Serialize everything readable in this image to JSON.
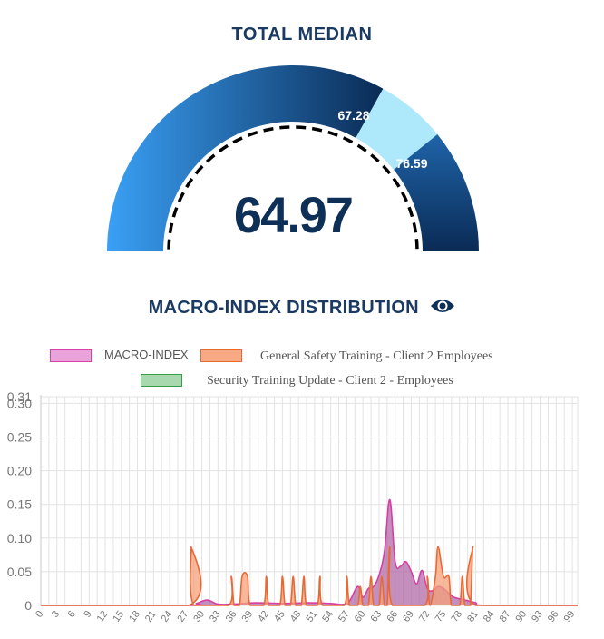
{
  "gauge": {
    "title": "TOTAL MEDIAN",
    "value": "64.97",
    "marker_a": "67.28",
    "marker_b": "76.59",
    "gradient_light": "#3aa0f5",
    "gradient_dark": "#0a2b55",
    "band_color": "#aee8fb"
  },
  "distribution": {
    "title": "MACRO-INDEX DISTRIBUTION",
    "eye_icon": "eye-icon"
  },
  "chart_data": {
    "type": "area",
    "xlim": [
      0,
      100
    ],
    "ylim": [
      0,
      0.31
    ],
    "x_ticks": [
      "0",
      "3",
      "6",
      "9",
      "12",
      "15",
      "18",
      "21",
      "24",
      "27",
      "30",
      "33",
      "36",
      "39",
      "42",
      "45",
      "48",
      "51",
      "54",
      "57",
      "60",
      "63",
      "66",
      "69",
      "72",
      "75",
      "78",
      "81",
      "84",
      "87",
      "90",
      "93",
      "96",
      "99"
    ],
    "y_ticks": [
      "0",
      "0.05",
      "0.10",
      "0.15",
      "0.20",
      "0.25",
      "0.30",
      "0.31"
    ],
    "grid": true,
    "legend_position": "top",
    "series": [
      {
        "name": "MACRO-INDEX",
        "fill": "#b06aa7",
        "stroke": "#d63fa6",
        "legend_fill": "#eaa3db",
        "points": [
          [
            0,
            0
          ],
          [
            27,
            0
          ],
          [
            29,
            0.003
          ],
          [
            31,
            0.008
          ],
          [
            33,
            0.002
          ],
          [
            36,
            0.002
          ],
          [
            40,
            0.004
          ],
          [
            45,
            0.003
          ],
          [
            50,
            0.004
          ],
          [
            54,
            0.003
          ],
          [
            57,
            0.002
          ],
          [
            59,
            0.028
          ],
          [
            60,
            0.012
          ],
          [
            61,
            0.025
          ],
          [
            62,
            0.028
          ],
          [
            63,
            0.045
          ],
          [
            64,
            0.08
          ],
          [
            65,
            0.157
          ],
          [
            66,
            0.065
          ],
          [
            67,
            0.058
          ],
          [
            68,
            0.065
          ],
          [
            69,
            0.05
          ],
          [
            70,
            0.032
          ],
          [
            71,
            0.052
          ],
          [
            72,
            0.025
          ],
          [
            73,
            0.022
          ],
          [
            74,
            0.028
          ],
          [
            75,
            0.025
          ],
          [
            76,
            0.018
          ],
          [
            77,
            0.012
          ],
          [
            79,
            0.008
          ],
          [
            81,
            0.004
          ],
          [
            83,
            0
          ],
          [
            100,
            0
          ]
        ]
      },
      {
        "name": "General Safety Training - Client 2   Employees",
        "fill": "#f4a07a",
        "stroke": "#e76a35",
        "legend_fill": "#f6a983",
        "points": [
          [
            0,
            0
          ],
          [
            27.5,
            0
          ],
          [
            28,
            0.087
          ],
          [
            28.5,
            0
          ],
          [
            35,
            0
          ],
          [
            35.5,
            0.043
          ],
          [
            36,
            0
          ],
          [
            37,
            0
          ],
          [
            37.5,
            0.043
          ],
          [
            38.5,
            0.043
          ],
          [
            39,
            0
          ],
          [
            41.5,
            0
          ],
          [
            42,
            0.043
          ],
          [
            42.5,
            0
          ],
          [
            44.5,
            0
          ],
          [
            45,
            0.043
          ],
          [
            45.5,
            0
          ],
          [
            46.5,
            0
          ],
          [
            47,
            0.043
          ],
          [
            47.5,
            0
          ],
          [
            48.5,
            0
          ],
          [
            49,
            0.043
          ],
          [
            49.5,
            0
          ],
          [
            51.5,
            0
          ],
          [
            52,
            0.043
          ],
          [
            52.5,
            0
          ],
          [
            56.5,
            0
          ],
          [
            57,
            0.043
          ],
          [
            57.5,
            0
          ],
          [
            59,
            0
          ],
          [
            59.5,
            0.028
          ],
          [
            60,
            0
          ],
          [
            61,
            0
          ],
          [
            61.5,
            0.043
          ],
          [
            62,
            0
          ],
          [
            63,
            0
          ],
          [
            63.5,
            0.043
          ],
          [
            64,
            0
          ],
          [
            64.5,
            0
          ],
          [
            65,
            0.087
          ],
          [
            65.5,
            0
          ],
          [
            71.5,
            0
          ],
          [
            72,
            0.043
          ],
          [
            72.5,
            0
          ],
          [
            73.5,
            0.043
          ],
          [
            74,
            0.087
          ],
          [
            75,
            0.043
          ],
          [
            76,
            0.043
          ],
          [
            76.5,
            0
          ],
          [
            78,
            0
          ],
          [
            78.5,
            0.043
          ],
          [
            79,
            0
          ],
          [
            80,
            0
          ],
          [
            80.5,
            0.087
          ],
          [
            81,
            0
          ],
          [
            100,
            0
          ]
        ]
      },
      {
        "name": "Security Training Update - Client 2 - Employees",
        "fill": "#a8d8ae",
        "stroke": "#3a9b4a",
        "legend_fill": "#a8d8ae",
        "points": []
      }
    ]
  }
}
